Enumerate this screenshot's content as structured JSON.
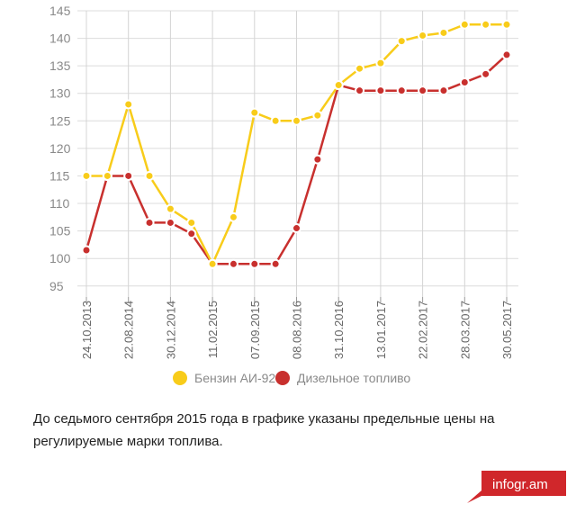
{
  "chart_data": {
    "type": "line",
    "y_ticks": [
      95,
      100,
      105,
      110,
      115,
      120,
      125,
      130,
      135,
      140,
      145
    ],
    "ylim": [
      93,
      145
    ],
    "x_labels": [
      "24.10.2013",
      "22.08.2014",
      "30.12.2014",
      "11.02.2015",
      "07.09.2015",
      "08.08.2016",
      "31.10.2016",
      "13.01.2017",
      "22.02.2017",
      "28.03.2017",
      "30.05.2017"
    ],
    "grid": true,
    "legend_position": "bottom-center",
    "series": [
      {
        "name": "Бензин АИ-92",
        "color": "#f8cc1a",
        "values": [
          115,
          115,
          128,
          115,
          109,
          106.5,
          99,
          107.5,
          126.5,
          125,
          125,
          126,
          131.5,
          134.5,
          135.5,
          139.5,
          140.5,
          141,
          142.5,
          142.5,
          142.5
        ]
      },
      {
        "name": "Дизельное топливо",
        "color": "#c8302e",
        "values": [
          101.5,
          115,
          115,
          106.5,
          106.5,
          104.5,
          99,
          99,
          99,
          99,
          105.5,
          118,
          131.5,
          130.5,
          130.5,
          130.5,
          130.5,
          130.5,
          132,
          133.5,
          137
        ]
      }
    ]
  },
  "caption": "До седьмого сентября 2015 года в графике указаны предельные цены на регулируемые марки топлива.",
  "brand": "infogr.am",
  "brand_color": "#d0272b"
}
